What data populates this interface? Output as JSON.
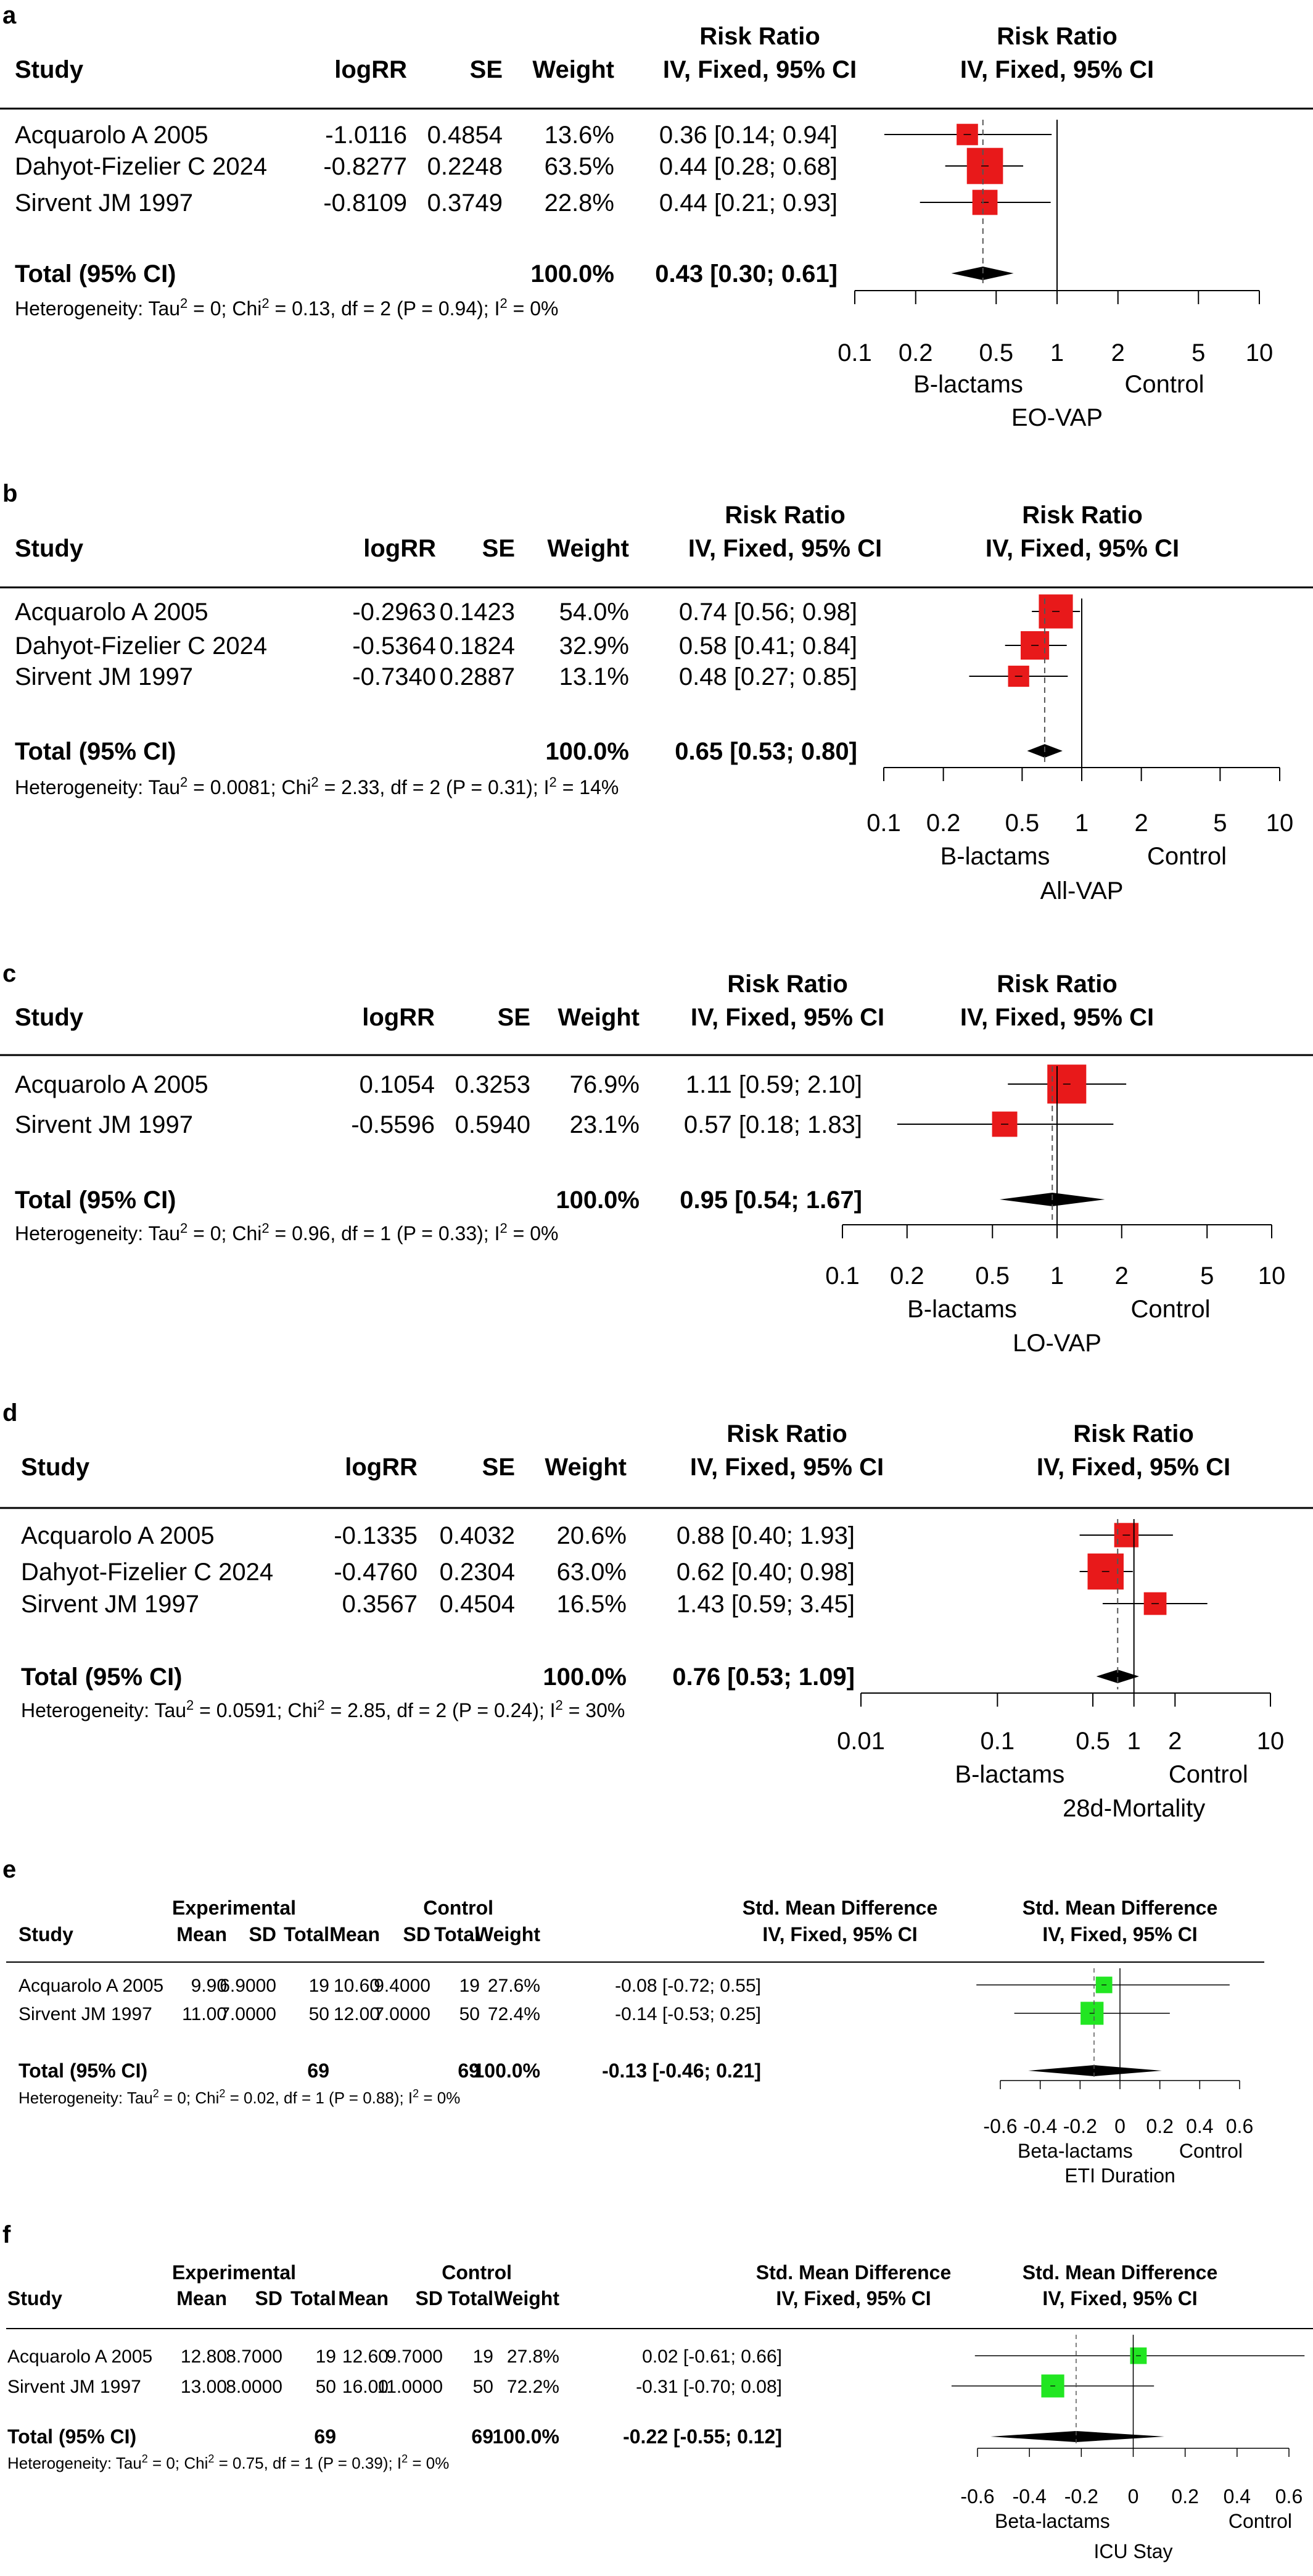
{
  "chart_data": [
    {
      "panel": "a",
      "type": "forest",
      "outcome_label": "EO-VAP",
      "left_label": "B-lactams",
      "right_label": "Control",
      "measure_label": "Risk Ratio",
      "method_label": "IV, Fixed, 95% CI",
      "columns": [
        "Study",
        "logRR",
        "SE",
        "Weight"
      ],
      "scale": "log",
      "xlim": [
        0.1,
        10
      ],
      "ticks": [
        0.1,
        0.2,
        0.5,
        1,
        2,
        5,
        10
      ],
      "tick_labels": [
        "0.1",
        "0.2",
        "0.5",
        "1",
        "2",
        "5",
        "10"
      ],
      "studies": [
        {
          "name": "Acquarolo A 2005",
          "logRR": "-1.0116",
          "SE": "0.4854",
          "weight": "13.6%",
          "ci_text": "0.36 [0.14; 0.94]",
          "est": 0.36,
          "lo": 0.14,
          "hi": 0.94,
          "w": 13.6
        },
        {
          "name": "Dahyot-Fizelier C 2024",
          "logRR": "-0.8277",
          "SE": "0.2248",
          "weight": "63.5%",
          "ci_text": "0.44 [0.28; 0.68]",
          "est": 0.44,
          "lo": 0.28,
          "hi": 0.68,
          "w": 63.5
        },
        {
          "name": "Sirvent JM 1997",
          "logRR": "-0.8109",
          "SE": "0.3749",
          "weight": "22.8%",
          "ci_text": "0.44 [0.21; 0.93]",
          "est": 0.44,
          "lo": 0.21,
          "hi": 0.93,
          "w": 22.8
        }
      ],
      "total": {
        "label": "Total (95% CI)",
        "weight": "100.0%",
        "ci_text": "0.43 [0.30; 0.61]",
        "est": 0.43,
        "lo": 0.3,
        "hi": 0.61
      },
      "heterogeneity": "Heterogeneity: Tau² = 0; Chi² = 0.13, df = 2 (P = 0.94); I² = 0%"
    },
    {
      "panel": "b",
      "type": "forest",
      "outcome_label": "All-VAP",
      "left_label": "B-lactams",
      "right_label": "Control",
      "measure_label": "Risk Ratio",
      "method_label": "IV, Fixed, 95% CI",
      "columns": [
        "Study",
        "logRR",
        "SE",
        "Weight"
      ],
      "scale": "log",
      "xlim": [
        0.1,
        10
      ],
      "ticks": [
        0.1,
        0.2,
        0.5,
        1,
        2,
        5,
        10
      ],
      "tick_labels": [
        "0.1",
        "0.2",
        "0.5",
        "1",
        "2",
        "5",
        "10"
      ],
      "studies": [
        {
          "name": "Acquarolo A 2005",
          "logRR": "-0.2963",
          "SE": "0.1423",
          "weight": "54.0%",
          "ci_text": "0.74 [0.56; 0.98]",
          "est": 0.74,
          "lo": 0.56,
          "hi": 0.98,
          "w": 54.0
        },
        {
          "name": "Dahyot-Fizelier C 2024",
          "logRR": "-0.5364",
          "SE": "0.1824",
          "weight": "32.9%",
          "ci_text": "0.58 [0.41; 0.84]",
          "est": 0.58,
          "lo": 0.41,
          "hi": 0.84,
          "w": 32.9
        },
        {
          "name": "Sirvent JM 1997",
          "logRR": "-0.7340",
          "SE": "0.2887",
          "weight": "13.1%",
          "ci_text": "0.48 [0.27; 0.85]",
          "est": 0.48,
          "lo": 0.27,
          "hi": 0.85,
          "w": 13.1
        }
      ],
      "total": {
        "label": "Total (95% CI)",
        "weight": "100.0%",
        "ci_text": "0.65 [0.53; 0.80]",
        "est": 0.65,
        "lo": 0.53,
        "hi": 0.8
      },
      "heterogeneity": "Heterogeneity: Tau² = 0.0081; Chi² = 2.33, df = 2 (P = 0.31); I² = 14%"
    },
    {
      "panel": "c",
      "type": "forest",
      "outcome_label": "LO-VAP",
      "left_label": "B-lactams",
      "right_label": "Control",
      "measure_label": "Risk Ratio",
      "method_label": "IV, Fixed, 95% CI",
      "columns": [
        "Study",
        "logRR",
        "SE",
        "Weight"
      ],
      "scale": "log",
      "xlim": [
        0.1,
        10
      ],
      "ticks": [
        0.1,
        0.2,
        0.5,
        1,
        2,
        5,
        10
      ],
      "tick_labels": [
        "0.1",
        "0.2",
        "0.5",
        "1",
        "2",
        "5",
        "10"
      ],
      "studies": [
        {
          "name": "Acquarolo A 2005",
          "logRR": "0.1054",
          "SE": "0.3253",
          "weight": "76.9%",
          "ci_text": "1.11 [0.59; 2.10]",
          "est": 1.11,
          "lo": 0.59,
          "hi": 2.1,
          "w": 76.9
        },
        {
          "name": "Sirvent JM 1997",
          "logRR": "-0.5596",
          "SE": "0.5940",
          "weight": "23.1%",
          "ci_text": "0.57 [0.18; 1.83]",
          "est": 0.57,
          "lo": 0.18,
          "hi": 1.83,
          "w": 23.1
        }
      ],
      "total": {
        "label": "Total (95% CI)",
        "weight": "100.0%",
        "ci_text": "0.95 [0.54; 1.67]",
        "est": 0.95,
        "lo": 0.54,
        "hi": 1.67
      },
      "heterogeneity": "Heterogeneity: Tau² = 0; Chi² = 0.96, df = 1 (P = 0.33); I² = 0%"
    },
    {
      "panel": "d",
      "type": "forest",
      "outcome_label": "28d-Mortality",
      "left_label": "B-lactams",
      "right_label": "Control",
      "measure_label": "Risk Ratio",
      "method_label": "IV, Fixed, 95% CI",
      "columns": [
        "Study",
        "logRR",
        "SE",
        "Weight"
      ],
      "scale": "log",
      "xlim": [
        0.01,
        10
      ],
      "ticks": [
        0.01,
        0.1,
        0.5,
        1,
        2,
        10
      ],
      "tick_labels": [
        "0.01",
        "0.1",
        "0.5",
        "1",
        "2",
        "10"
      ],
      "studies": [
        {
          "name": "Acquarolo A 2005",
          "logRR": "-0.1335",
          "SE": "0.4032",
          "weight": "20.6%",
          "ci_text": "0.88 [0.40; 1.93]",
          "est": 0.88,
          "lo": 0.4,
          "hi": 1.93,
          "w": 20.6
        },
        {
          "name": "Dahyot-Fizelier C 2024",
          "logRR": "-0.4760",
          "SE": "0.2304",
          "weight": "63.0%",
          "ci_text": "0.62 [0.40; 0.98]",
          "est": 0.62,
          "lo": 0.4,
          "hi": 0.98,
          "w": 63.0
        },
        {
          "name": "Sirvent JM 1997",
          "logRR": "0.3567",
          "SE": "0.4504",
          "weight": "16.5%",
          "ci_text": "1.43 [0.59; 3.45]",
          "est": 1.43,
          "lo": 0.59,
          "hi": 3.45,
          "w": 16.5
        }
      ],
      "total": {
        "label": "Total (95% CI)",
        "weight": "100.0%",
        "ci_text": "0.76 [0.53; 1.09]",
        "est": 0.76,
        "lo": 0.53,
        "hi": 1.09
      },
      "heterogeneity": "Heterogeneity: Tau² = 0.0591; Chi² = 2.85, df = 2 (P = 0.24); I² = 30%"
    },
    {
      "panel": "e",
      "type": "forest",
      "outcome_label": "ETI Duration",
      "left_label": "Beta-lactams",
      "right_label": "Control",
      "measure_label": "Std. Mean Difference",
      "method_label": "IV, Fixed, 95% CI",
      "group_labels": [
        "Experimental",
        "Control"
      ],
      "columns": [
        "Study",
        "Mean",
        "SD",
        "Total",
        "Mean",
        "SD",
        "Total",
        "Weight"
      ],
      "scale": "linear",
      "xlim": [
        -0.6,
        0.6
      ],
      "ticks": [
        -0.6,
        -0.4,
        -0.2,
        0,
        0.2,
        0.4,
        0.6
      ],
      "tick_labels": [
        "-0.6",
        "-0.4",
        "-0.2",
        "0",
        "0.2",
        "0.4",
        "0.6"
      ],
      "studies": [
        {
          "name": "Acquarolo A 2005",
          "exp_mean": "9.90",
          "exp_sd": "6.9000",
          "exp_total": "19",
          "ctl_mean": "10.60",
          "ctl_sd": "9.4000",
          "ctl_total": "19",
          "weight": "27.6%",
          "ci_text": "-0.08 [-0.72; 0.55]",
          "est": -0.08,
          "lo": -0.72,
          "hi": 0.55,
          "w": 27.6
        },
        {
          "name": "Sirvent JM 1997",
          "exp_mean": "11.00",
          "exp_sd": "7.0000",
          "exp_total": "50",
          "ctl_mean": "12.00",
          "ctl_sd": "7.0000",
          "ctl_total": "50",
          "weight": "72.4%",
          "ci_text": "-0.14 [-0.53; 0.25]",
          "est": -0.14,
          "lo": -0.53,
          "hi": 0.25,
          "w": 72.4
        }
      ],
      "total": {
        "label": "Total (95% CI)",
        "exp_total": "69",
        "ctl_total": "69",
        "weight": "100.0%",
        "ci_text": "-0.13 [-0.46; 0.21]",
        "est": -0.13,
        "lo": -0.46,
        "hi": 0.21
      },
      "heterogeneity": "Heterogeneity: Tau² = 0; Chi² = 0.02, df = 1 (P = 0.88); I² = 0%"
    },
    {
      "panel": "f",
      "type": "forest",
      "outcome_label": "ICU Stay",
      "left_label": "Beta-lactams",
      "right_label": "Control",
      "measure_label": "Std. Mean Difference",
      "method_label": "IV, Fixed, 95% CI",
      "group_labels": [
        "Experimental",
        "Control"
      ],
      "columns": [
        "Study",
        "Mean",
        "SD",
        "Total",
        "Mean",
        "SD",
        "Total",
        "Weight"
      ],
      "scale": "linear",
      "xlim": [
        -0.6,
        0.6
      ],
      "ticks": [
        -0.6,
        -0.4,
        -0.2,
        0,
        0.2,
        0.4,
        0.6
      ],
      "tick_labels": [
        "-0.6",
        "-0.4",
        "-0.2",
        "0",
        "0.2",
        "0.4",
        "0.6"
      ],
      "studies": [
        {
          "name": "Acquarolo A 2005",
          "exp_mean": "12.80",
          "exp_sd": "8.7000",
          "exp_total": "19",
          "ctl_mean": "12.60",
          "ctl_sd": "9.7000",
          "ctl_total": "19",
          "weight": "27.8%",
          "ci_text": "0.02 [-0.61; 0.66]",
          "est": 0.02,
          "lo": -0.61,
          "hi": 0.66,
          "w": 27.8
        },
        {
          "name": "Sirvent JM 1997",
          "exp_mean": "13.00",
          "exp_sd": "8.0000",
          "exp_total": "50",
          "ctl_mean": "16.00",
          "ctl_sd": "11.0000",
          "ctl_total": "50",
          "weight": "72.2%",
          "ci_text": "-0.31 [-0.70; 0.08]",
          "est": -0.31,
          "lo": -0.7,
          "hi": 0.08,
          "w": 72.2
        }
      ],
      "total": {
        "label": "Total (95% CI)",
        "exp_total": "69",
        "ctl_total": "69",
        "weight": "100.0%",
        "ci_text": "-0.22 [-0.55; 0.12]",
        "est": -0.22,
        "lo": -0.55,
        "hi": 0.12
      },
      "heterogeneity": "Heterogeneity: Tau² = 0; Chi² = 0.75, df = 1 (P = 0.39); I² = 0%"
    }
  ],
  "colors": {
    "rr_box": "#e8191a",
    "smd_box": "#22e622",
    "line": "#000000",
    "dash": "#555555"
  }
}
